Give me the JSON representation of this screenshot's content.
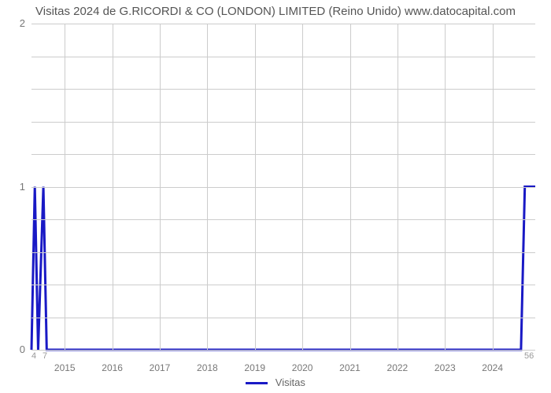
{
  "chart": {
    "type": "line",
    "title": "Visitas 2024 de G.RICORDI & CO (LONDON) LIMITED (Reino Unido) www.datocapital.com",
    "title_fontsize": 15,
    "title_color": "#555555",
    "background_color": "#ffffff",
    "grid_color": "#cccccc",
    "axis_line_color": "#666666",
    "line_color": "#1919c5",
    "line_width": 3,
    "ylim": [
      0,
      2
    ],
    "ytick_values": [
      0,
      1,
      2
    ],
    "ytick_minor_count": 4,
    "xlim_years": [
      2014.3,
      2024.9
    ],
    "x_tick_years": [
      2015,
      2016,
      2017,
      2018,
      2019,
      2020,
      2021,
      2022,
      2023,
      2024
    ],
    "x_left_small_labels": [
      "4",
      "7"
    ],
    "x_right_small_label": "56",
    "series": {
      "name": "Visitas",
      "points": [
        {
          "year": 2014.3,
          "v": 0
        },
        {
          "year": 2014.37,
          "v": 1
        },
        {
          "year": 2014.44,
          "v": 0
        },
        {
          "year": 2014.55,
          "v": 1
        },
        {
          "year": 2014.62,
          "v": 0
        },
        {
          "year": 2024.6,
          "v": 0
        },
        {
          "year": 2024.68,
          "v": 1
        },
        {
          "year": 2024.9,
          "v": 1
        }
      ]
    },
    "legend_label": "Visitas",
    "axis_label_color": "#777777",
    "axis_label_fontsize": 13
  }
}
